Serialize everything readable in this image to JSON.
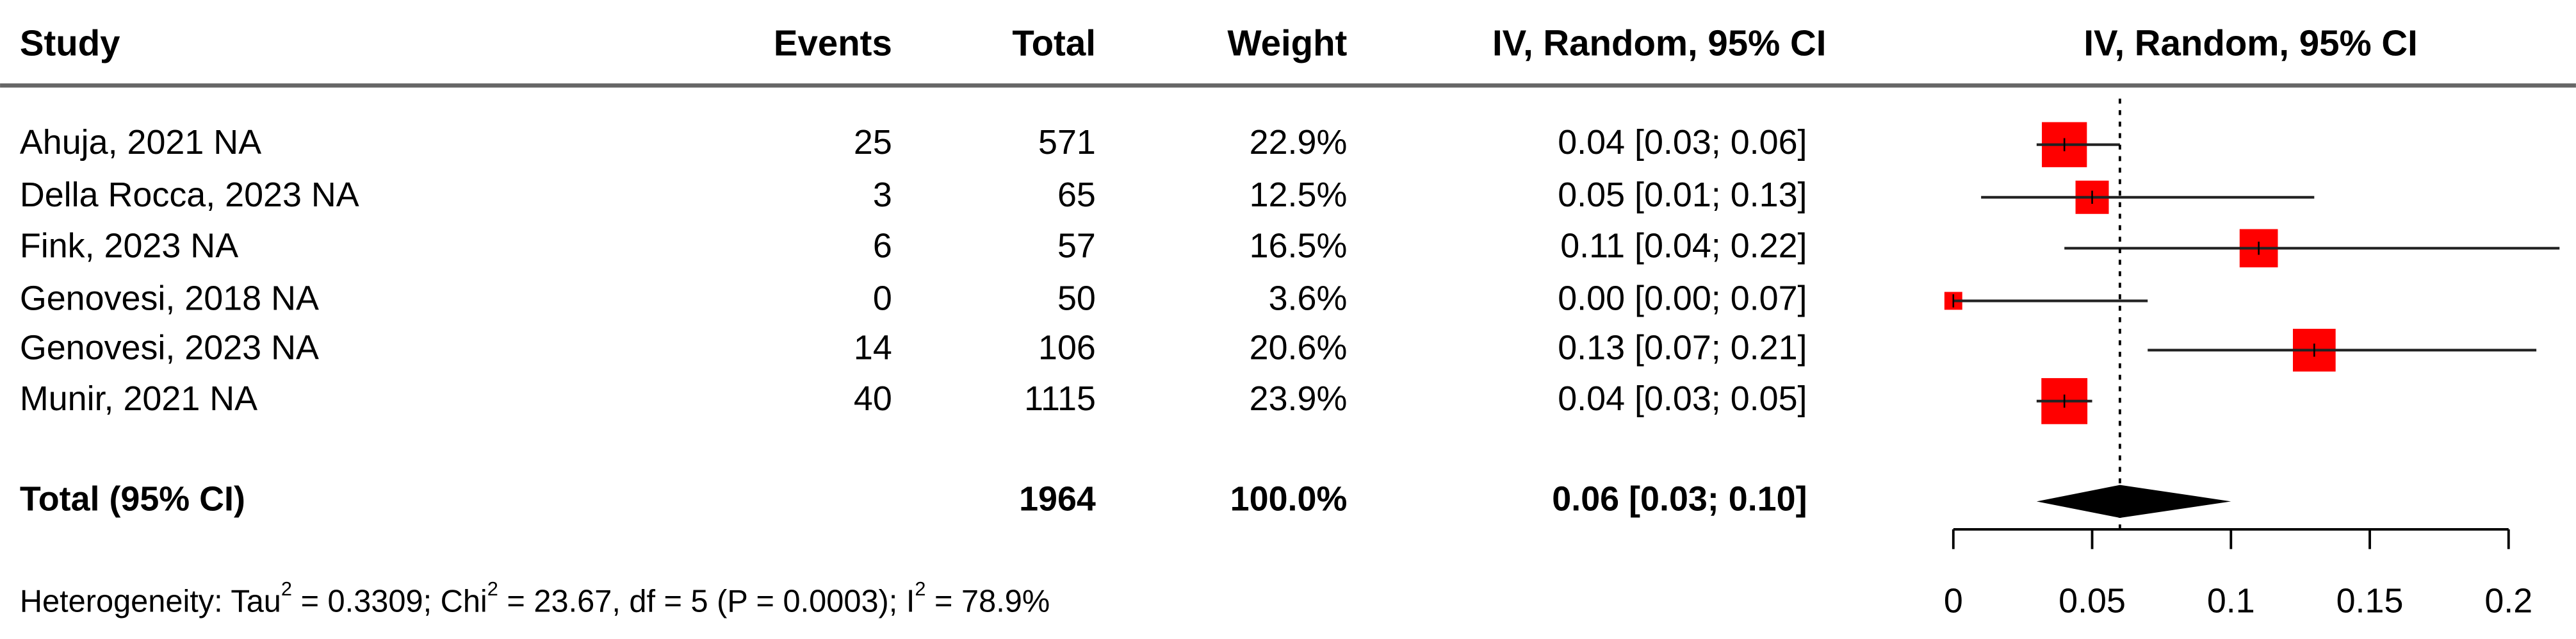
{
  "chart_data": {
    "type": "forest",
    "columns": [
      "Study",
      "Events",
      "Total",
      "Weight",
      "IV, Random, 95% CI"
    ],
    "plot_header": "IV, Random, 95% CI",
    "studies": [
      "Ahuja, 2021 NA",
      "Della Rocca, 2023 NA",
      "Fink, 2023 NA",
      "Genovesi, 2018 NA",
      "Genovesi, 2023 NA",
      "Munir, 2021 NA"
    ],
    "events": [
      25,
      3,
      6,
      0,
      14,
      40
    ],
    "totals": [
      571,
      65,
      57,
      50,
      106,
      1115
    ],
    "weights": [
      22.9,
      12.5,
      16.5,
      3.6,
      20.6,
      23.9
    ],
    "weight_labels": [
      "22.9%",
      "12.5%",
      "16.5%",
      "3.6%",
      "20.6%",
      "23.9%"
    ],
    "estimates": [
      0.04,
      0.05,
      0.11,
      0,
      0.13,
      0.04
    ],
    "lower": [
      0.03,
      0.01,
      0.04,
      0,
      0.07,
      0.03
    ],
    "upper": [
      0.06,
      0.13,
      0.22,
      0.07,
      0.21,
      0.05
    ],
    "ci_labels": [
      "0.04 [0.03; 0.06]",
      "0.05 [0.01; 0.13]",
      "0.11 [0.04; 0.22]",
      "0.00 [0.00; 0.07]",
      "0.13 [0.07; 0.21]",
      "0.04 [0.03; 0.05]"
    ],
    "color": "#ff0000",
    "total": {
      "label": "Total (95% CI)",
      "total": 1964,
      "weight": 100,
      "weight_label": "100.0%",
      "estimate": 0.06,
      "lower": 0.03,
      "upper": 0.1,
      "ci_label": "0.06 [0.03; 0.10]"
    },
    "xlim": [
      0,
      0.2
    ],
    "xticks": [
      0,
      0.05,
      0.1,
      0.15,
      0.2
    ],
    "heterogeneity": [
      "Heterogeneity: Tau",
      "2",
      " = 0.3309; Chi",
      "2",
      " = 23.67, df = 5 (P = 0.0003); I",
      "2",
      " = 78.9%"
    ]
  }
}
